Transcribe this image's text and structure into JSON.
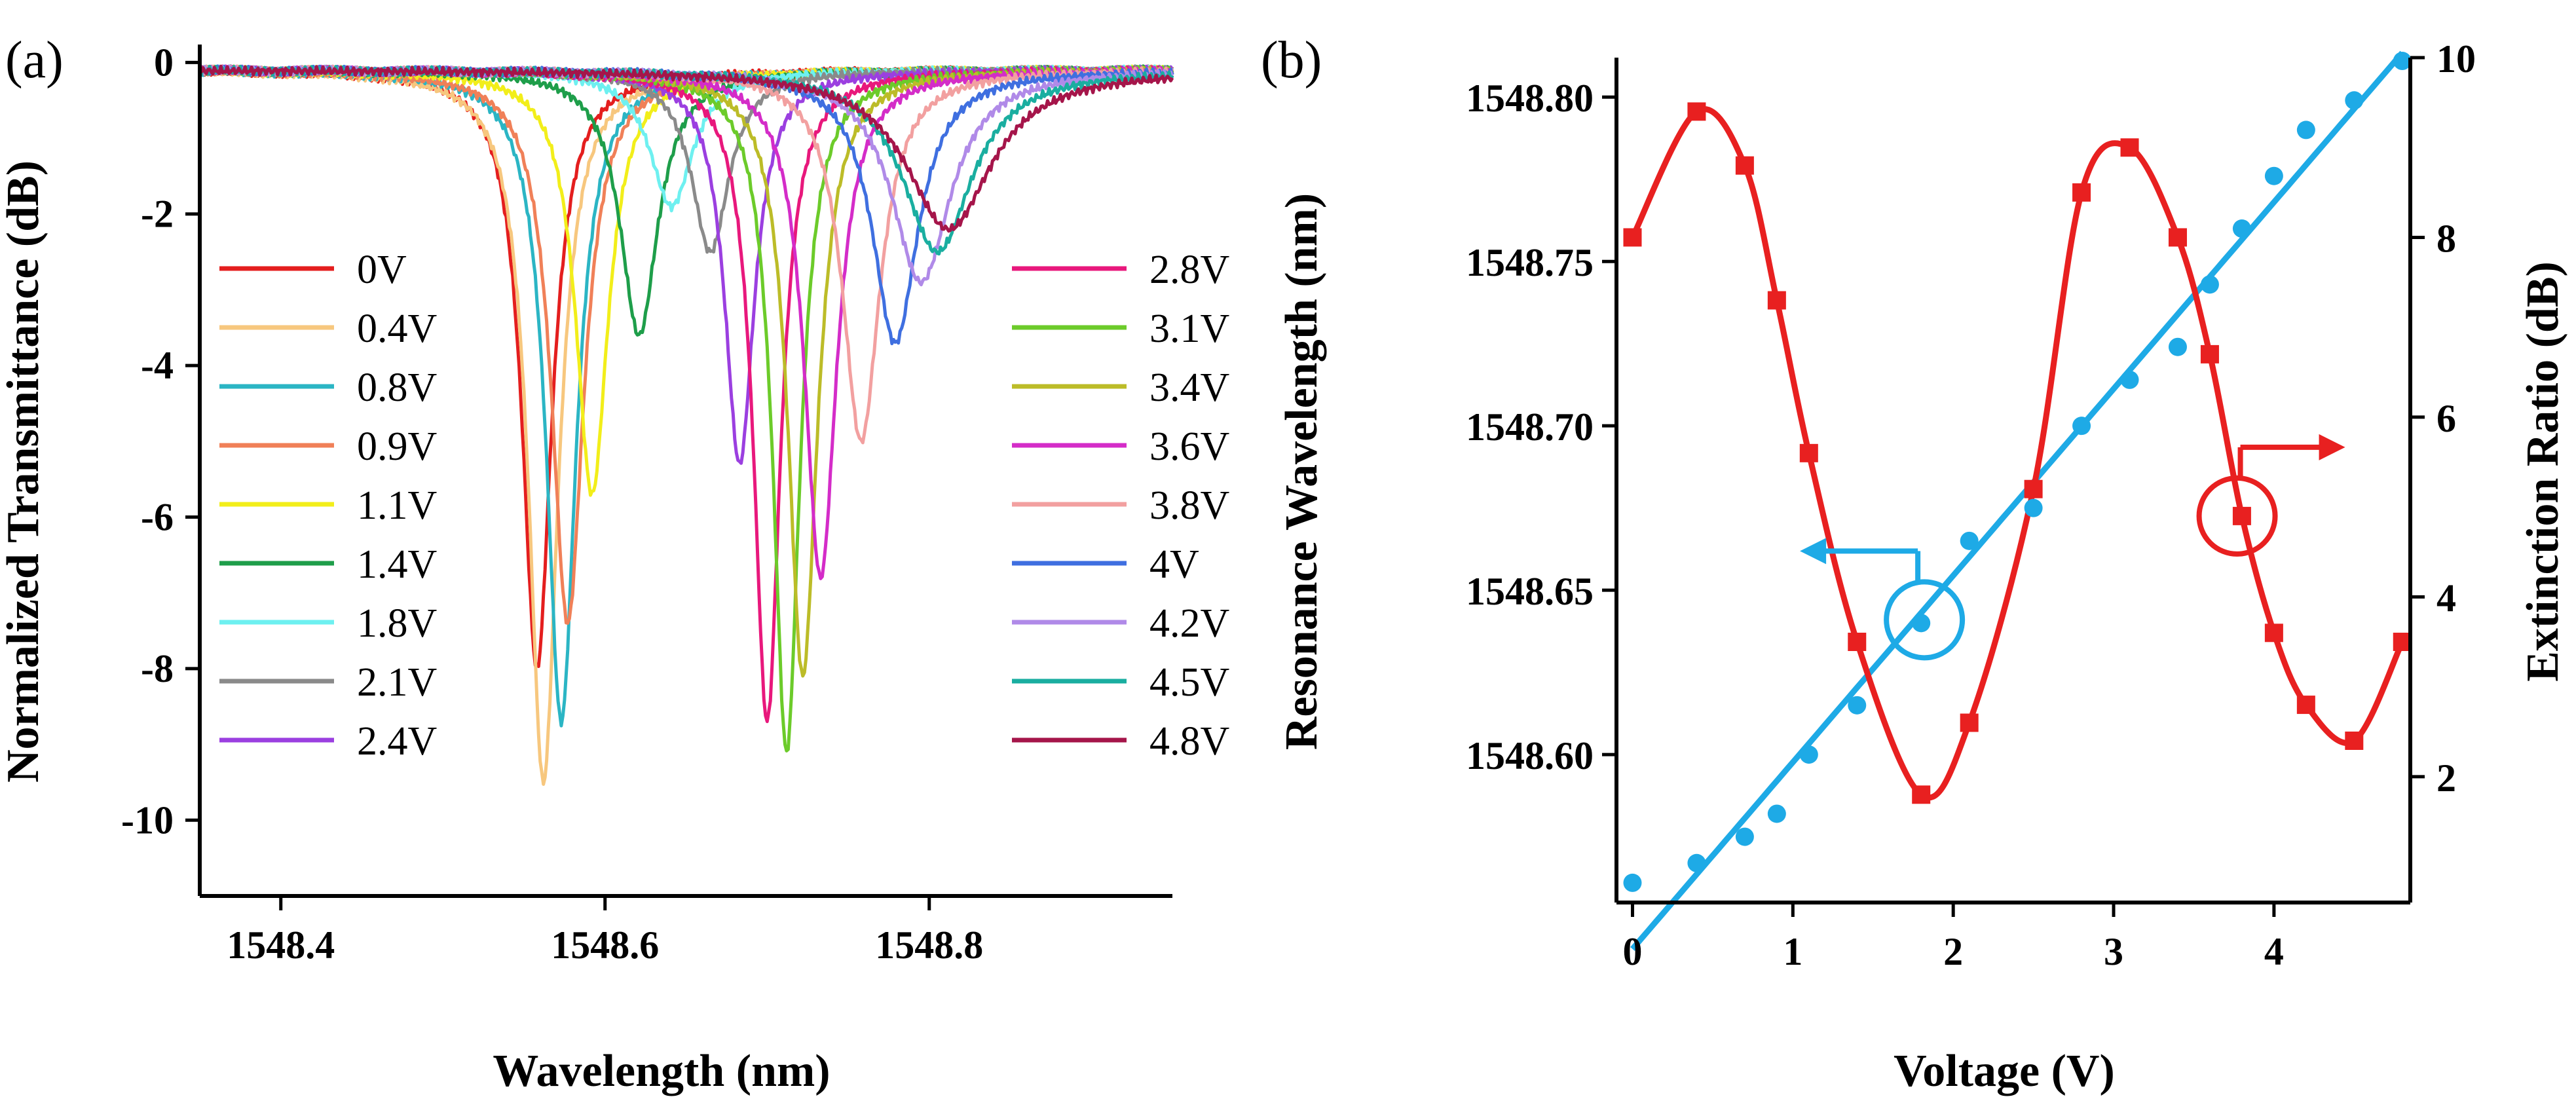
{
  "chart_data": [
    {
      "panel": "(a)",
      "type": "line",
      "xlabel": "Wavelength (nm)",
      "ylabel": "Normalized Transmittance (dB)",
      "xlim": [
        1548.35,
        1548.95
      ],
      "ylim": [
        -11,
        0.15
      ],
      "xticks": [
        1548.4,
        1548.6,
        1548.8
      ],
      "xtick_labels": [
        "1548.4",
        "1548.6",
        "1548.8"
      ],
      "yticks": [
        0,
        -2,
        -4,
        -6,
        -8,
        -10
      ],
      "ytick_labels": [
        "0",
        "-2",
        "-4",
        "-6",
        "-8",
        "-10"
      ],
      "series": [
        {
          "name": "0V",
          "color": "#e41e1e",
          "center": 1548.558,
          "depth": 7.9,
          "width": 0.011
        },
        {
          "name": "0.4V",
          "color": "#f7c77e",
          "center": 1548.562,
          "depth": 9.4,
          "width": 0.011
        },
        {
          "name": "0.8V",
          "color": "#2bb5c4",
          "center": 1548.573,
          "depth": 8.6,
          "width": 0.011
        },
        {
          "name": "0.9V",
          "color": "#f08058",
          "center": 1548.577,
          "depth": 7.3,
          "width": 0.012
        },
        {
          "name": "1.1V",
          "color": "#f2ee1a",
          "center": 1548.592,
          "depth": 5.6,
          "width": 0.012
        },
        {
          "name": "1.4V",
          "color": "#1e9e4a",
          "center": 1548.621,
          "depth": 3.5,
          "width": 0.014
        },
        {
          "name": "1.8V",
          "color": "#6ef0f0",
          "center": 1548.641,
          "depth": 1.8,
          "width": 0.016
        },
        {
          "name": "2.1V",
          "color": "#8a8a8a",
          "center": 1548.665,
          "depth": 2.4,
          "width": 0.014
        },
        {
          "name": "2.4V",
          "color": "#9b3fe0",
          "center": 1548.683,
          "depth": 5.2,
          "width": 0.011
        },
        {
          "name": "2.8V",
          "color": "#e8187c",
          "center": 1548.7,
          "depth": 8.6,
          "width": 0.01
        },
        {
          "name": "3.1V",
          "color": "#6ccb2a",
          "center": 1548.712,
          "depth": 9.0,
          "width": 0.01
        },
        {
          "name": "3.4V",
          "color": "#bcbc28",
          "center": 1548.722,
          "depth": 8.0,
          "width": 0.011
        },
        {
          "name": "3.6V",
          "color": "#d42cc8",
          "center": 1548.733,
          "depth": 6.7,
          "width": 0.012
        },
        {
          "name": "3.8V",
          "color": "#f2a0a0",
          "center": 1548.758,
          "depth": 4.9,
          "width": 0.014
        },
        {
          "name": "4V",
          "color": "#3f6fe0",
          "center": 1548.779,
          "depth": 3.6,
          "width": 0.017
        },
        {
          "name": "4.2V",
          "color": "#b08ae8",
          "center": 1548.795,
          "depth": 2.8,
          "width": 0.022
        },
        {
          "name": "4.5V",
          "color": "#1aaea0",
          "center": 1548.805,
          "depth": 2.4,
          "width": 0.026
        },
        {
          "name": "4.8V",
          "color": "#a5154a",
          "center": 1548.812,
          "depth": 2.1,
          "width": 0.032
        }
      ]
    },
    {
      "panel": "(b)",
      "type": "scatter",
      "xlabel": "Voltage (V)",
      "ylabel": "Resonance Wavelength (nm)",
      "ylabel_right": "Extinction Ratio (dB)",
      "xlim": [
        -0.1,
        4.85
      ],
      "ylim": [
        1548.555,
        1548.812
      ],
      "ylim_right": [
        0.6,
        10
      ],
      "xticks": [
        0,
        1,
        2,
        3,
        4
      ],
      "xtick_labels": [
        "0",
        "1",
        "2",
        "3",
        "4"
      ],
      "yticks": [
        1548.6,
        1548.65,
        1548.7,
        1548.75,
        1548.8
      ],
      "ytick_labels": [
        "1548.60",
        "1548.65",
        "1548.70",
        "1548.75",
        "1548.80"
      ],
      "yticks_right": [
        2,
        4,
        6,
        8,
        10
      ],
      "ytick_labels_right": [
        "2",
        "4",
        "6",
        "8",
        "10"
      ],
      "series": [
        {
          "name": "Resonance Wavelength",
          "color": "#1eaae6",
          "axis": "left",
          "x": [
            0,
            0.4,
            0.7,
            0.9,
            1.1,
            1.4,
            1.8,
            2.1,
            2.5,
            2.8,
            3.1,
            3.4,
            3.6,
            3.8,
            4.0,
            4.2,
            4.5,
            4.8
          ],
          "y": [
            1548.561,
            1548.567,
            1548.575,
            1548.582,
            1548.6,
            1548.615,
            1548.64,
            1548.665,
            1548.675,
            1548.7,
            1548.714,
            1548.724,
            1548.743,
            1548.76,
            1548.776,
            1548.79,
            1548.799,
            1548.811
          ],
          "fit": "linear"
        },
        {
          "name": "Extinction Ratio",
          "color": "#e82020",
          "axis": "right",
          "x": [
            0,
            0.4,
            0.7,
            0.9,
            1.1,
            1.4,
            1.8,
            2.1,
            2.5,
            2.8,
            3.1,
            3.4,
            3.6,
            3.8,
            4.0,
            4.2,
            4.5,
            4.8
          ],
          "y": [
            8.0,
            9.4,
            8.8,
            7.3,
            5.6,
            3.5,
            1.8,
            2.6,
            5.2,
            8.5,
            9.0,
            8.0,
            6.7,
            4.9,
            3.6,
            2.8,
            2.4,
            3.5
          ],
          "fit": "smooth"
        }
      ]
    }
  ]
}
